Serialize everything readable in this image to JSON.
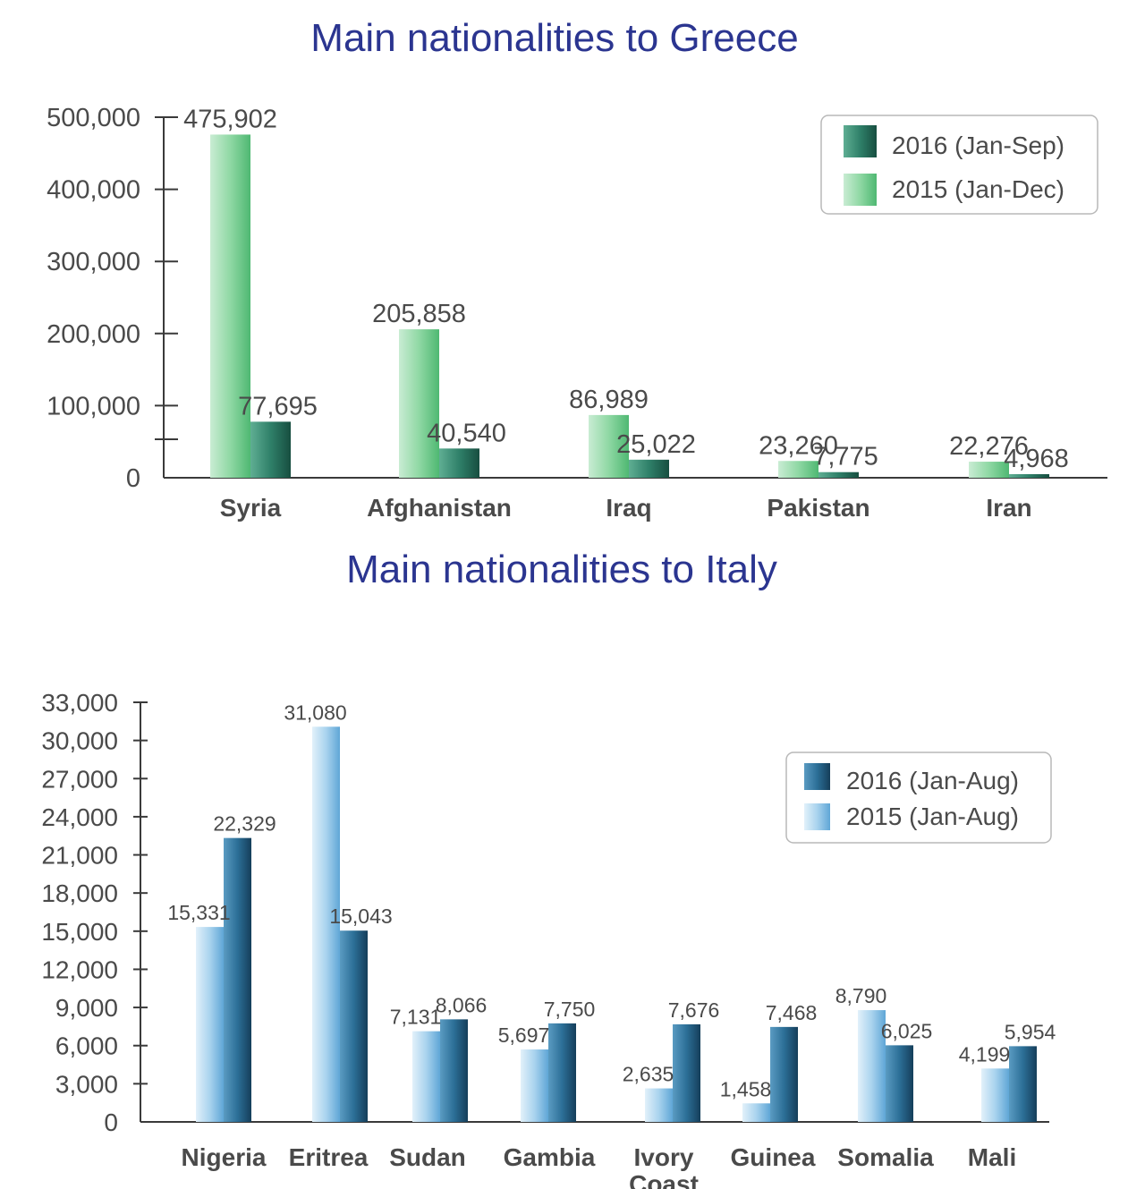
{
  "chart_data": [
    {
      "type": "bar",
      "title": "Main nationalities to Greece",
      "categories": [
        "Syria",
        "Afghanistan",
        "Iraq",
        "Pakistan",
        "Iran"
      ],
      "series": [
        {
          "name": "2015 (Jan-Dec)",
          "values": [
            475902,
            205858,
            86989,
            23260,
            22276
          ],
          "labels": [
            "475,902",
            "205,858",
            "86,989",
            "23,260",
            "22,276"
          ],
          "color": "#6cc78a"
        },
        {
          "name": "2016 (Jan-Sep)",
          "values": [
            77695,
            40540,
            25022,
            7775,
            4968
          ],
          "labels": [
            "77,695",
            "40,540",
            "25,022",
            "7,775",
            "4,968"
          ],
          "color": "#2a7a62"
        }
      ],
      "yticks": [
        0,
        100000,
        200000,
        300000,
        400000,
        500000
      ],
      "ytick_labels": [
        "0",
        "100,000",
        "200,000",
        "300,000",
        "400,000",
        "500,000"
      ],
      "ylim": [
        0,
        500000
      ],
      "legend_position": "top-right",
      "legend_order": [
        "2016 (Jan-Sep)",
        "2015 (Jan-Dec)"
      ]
    },
    {
      "type": "bar",
      "title": "Main nationalities to Italy",
      "categories": [
        "Nigeria",
        "Eritrea",
        "Sudan",
        "Gambia",
        "Ivory Coast",
        "Guinea",
        "Somalia",
        "Mali"
      ],
      "series": [
        {
          "name": "2015 (Jan-Aug)",
          "values": [
            15331,
            31080,
            7131,
            5697,
            2635,
            1458,
            8790,
            4199
          ],
          "labels": [
            "15,331",
            "31,080",
            "7,131",
            "5,697",
            "2,635",
            "1,458",
            "8,790",
            "4,199"
          ],
          "color": "#8ec5e6"
        },
        {
          "name": "2016 (Jan-Aug)",
          "values": [
            22329,
            15043,
            8066,
            7750,
            7676,
            7468,
            6025,
            5954
          ],
          "labels": [
            "22,329",
            "15,043",
            "8,066",
            "7,750",
            "7,676",
            "7,468",
            "6,025",
            "5,954"
          ],
          "color": "#245f84"
        }
      ],
      "yticks": [
        0,
        3000,
        6000,
        9000,
        12000,
        15000,
        18000,
        21000,
        24000,
        27000,
        30000,
        33000
      ],
      "ytick_labels": [
        "0",
        "3,000",
        "6,000",
        "9,000",
        "12,000",
        "15,000",
        "18,000",
        "21,000",
        "24,000",
        "27,000",
        "30,000",
        "33,000"
      ],
      "ylim": [
        0,
        33000
      ],
      "legend_position": "top-right",
      "legend_order": [
        "2016 (Jan-Aug)",
        "2015 (Jan-Aug)"
      ]
    }
  ]
}
